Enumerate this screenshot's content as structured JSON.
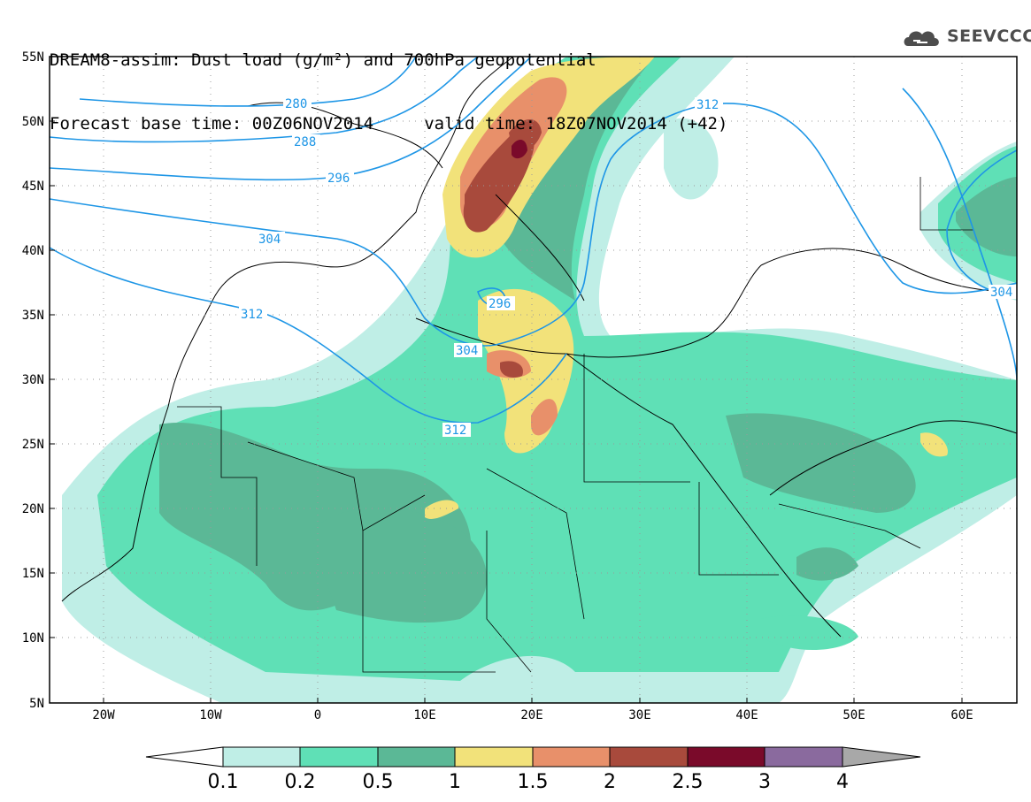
{
  "title": {
    "line1": "DREAM8-assim: Dust load (g/m²) and 700hPa geopotential",
    "line2": "Forecast base time: 00Z06NOV2014     valid time: 18Z07NOV2014 (+42)"
  },
  "logo": {
    "text": "SEEVCCC",
    "icon": "cloud-logo-icon"
  },
  "map": {
    "lat_labels": [
      "55N",
      "50N",
      "45N",
      "40N",
      "35N",
      "30N",
      "25N",
      "20N",
      "15N",
      "10N",
      "5N"
    ],
    "lon_labels": [
      "20W",
      "10W",
      "0",
      "10E",
      "20E",
      "30E",
      "40E",
      "50E",
      "60E"
    ],
    "contour_labels": [
      {
        "text": "280"
      },
      {
        "text": "288"
      },
      {
        "text": "296"
      },
      {
        "text": "304"
      },
      {
        "text": "312"
      },
      {
        "text": "296"
      },
      {
        "text": "304"
      },
      {
        "text": "312"
      },
      {
        "text": "312"
      },
      {
        "text": "304"
      }
    ],
    "colors": {
      "contour": "#1e96e6",
      "levels": [
        "#bfeee6",
        "#5fe0b6",
        "#5bb896",
        "#f2e27a",
        "#e8906a",
        "#a84a3c",
        "#7a0a2a",
        "#8a6a9e",
        "#a8a8a8"
      ]
    }
  },
  "colorbar": {
    "tick_labels": [
      "0.1",
      "0.2",
      "0.5",
      "1",
      "1.5",
      "2",
      "2.5",
      "3",
      "4"
    ]
  }
}
